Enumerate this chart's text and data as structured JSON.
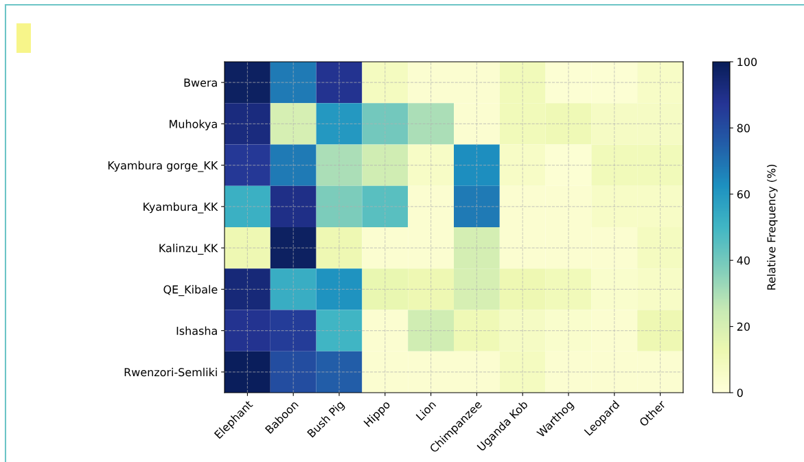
{
  "chart_data": {
    "type": "heatmap",
    "categories": [
      "Elephant",
      "Baboon",
      "Bush Pig",
      "Hippo",
      "Lion",
      "Chimpanzee",
      "Uganda Kob",
      "Warthog",
      "Leopard",
      "Other"
    ],
    "y_categories": [
      "Bwera",
      "Muhokya",
      "Kyambura gorge_KK",
      "Kyambura_KK",
      "Kalinzu_KK",
      "QE_Kibale",
      "Ishasha",
      "Rwenzori-Semliki"
    ],
    "cells": [
      [
        98,
        68,
        88,
        8,
        3,
        3,
        10,
        2,
        2,
        6
      ],
      [
        92,
        20,
        60,
        40,
        30,
        3,
        10,
        11,
        7,
        7
      ],
      [
        86,
        68,
        30,
        22,
        6,
        63,
        6,
        2,
        10,
        10
      ],
      [
        52,
        90,
        38,
        45,
        3,
        68,
        3,
        3,
        6,
        6
      ],
      [
        12,
        98,
        12,
        3,
        3,
        21,
        3,
        3,
        3,
        8
      ],
      [
        93,
        53,
        62,
        14,
        12,
        20,
        12,
        10,
        4,
        6
      ],
      [
        88,
        85,
        50,
        3,
        22,
        11,
        7,
        4,
        3,
        12
      ],
      [
        99,
        80,
        75,
        3,
        3,
        3,
        8,
        3,
        3,
        3
      ]
    ],
    "clim": [
      0,
      100
    ],
    "cticks": [
      0,
      20,
      40,
      60,
      80,
      100
    ],
    "clabel": "Relative Frequency (%)",
    "grid": true
  }
}
